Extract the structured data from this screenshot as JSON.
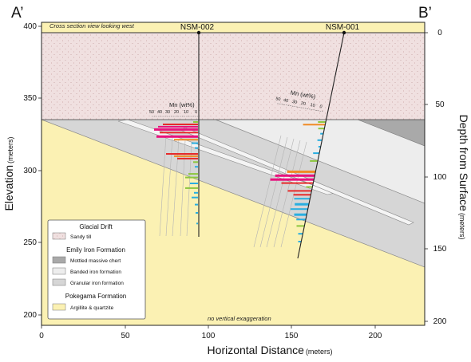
{
  "corner_labels": {
    "left": "A’",
    "right": "B’"
  },
  "top_note": "Cross section view looking west",
  "bottom_note": "no vertical exaggeration",
  "wells": [
    {
      "name": "NSM-002"
    },
    {
      "name": "NSM-001"
    }
  ],
  "mn_axis": {
    "title": "Mn (wt%)",
    "ticks": [
      "50",
      "40",
      "30",
      "20",
      "10",
      "0"
    ]
  },
  "axes": {
    "left_label": "Elevation",
    "left_label_unit": "(meters)",
    "left_ticks": [
      "400",
      "350",
      "300",
      "250",
      "200"
    ],
    "bottom_label": "Horizontal Distance",
    "bottom_label_unit": "(meters)",
    "bottom_ticks": [
      "0",
      "50",
      "100",
      "150",
      "200"
    ],
    "right_label": "Depth from Surface",
    "right_label_unit": "(meters)",
    "right_ticks": [
      "0",
      "50",
      "100",
      "150",
      "200"
    ]
  },
  "legend": {
    "groups": [
      {
        "title": "Glacial Drift",
        "items": [
          {
            "label": "Sandy till",
            "color": "#f0e0e0",
            "pattern": "dots"
          }
        ]
      },
      {
        "title": "Emily Iron Formation",
        "items": [
          {
            "label": "Mottled massive chert",
            "color": "#a9a9a9"
          },
          {
            "label": "Banded iron formation",
            "color": "#ededed"
          },
          {
            "label": "Granular iron formation",
            "color": "#d6d6d6"
          }
        ]
      },
      {
        "title": "Pokegama Formation",
        "items": [
          {
            "label": "Argillite & quartzite",
            "color": "#fbf1b3"
          }
        ]
      }
    ]
  },
  "colors": {
    "drift": "#f0e0e0",
    "pokegama": "#fbf1b3",
    "granular": "#d6d6d6",
    "banded": "#ededed",
    "chert": "#a9a9a9",
    "mn_high": "#e8127d",
    "mn_red": "#e62a2a",
    "mn_orange": "#f08a24",
    "mn_green": "#8cc63e",
    "mn_cyan": "#29aee0"
  }
}
